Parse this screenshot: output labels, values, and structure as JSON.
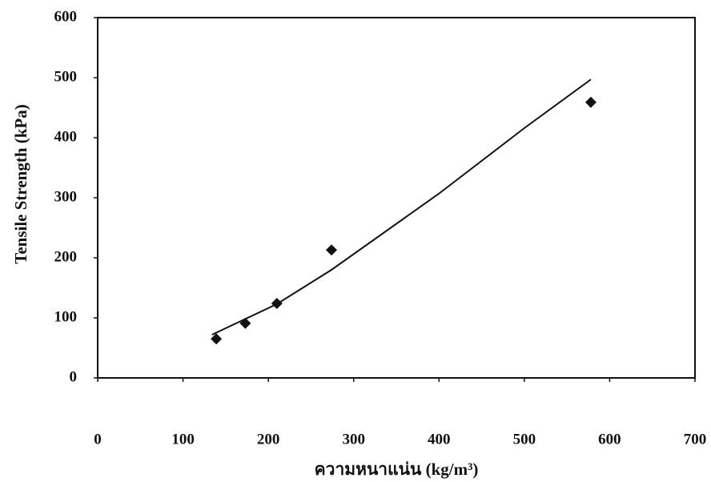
{
  "chart_data": {
    "type": "scatter",
    "y_label": "Tensile Strength (kPa)",
    "x_label": "ความหนาแน่น (kg/m³)",
    "xlim": [
      0,
      700
    ],
    "xticks": [
      0,
      100,
      200,
      300,
      400,
      500,
      600,
      700
    ],
    "ylim": [
      0,
      600
    ],
    "yticks": [
      0,
      100,
      200,
      300,
      400,
      500,
      600
    ],
    "series": [
      {
        "type": "scatter",
        "marker": "diamond",
        "color": "#111111",
        "x": [
          139,
          173,
          210,
          274,
          578
        ],
        "values": [
          65,
          91,
          124,
          213,
          459
        ]
      },
      {
        "type": "line",
        "color": "#111111",
        "x": [
          134,
          210,
          274,
          400,
          500,
          578
        ],
        "values": [
          72,
          123,
          180,
          307,
          416,
          497
        ]
      }
    ]
  }
}
